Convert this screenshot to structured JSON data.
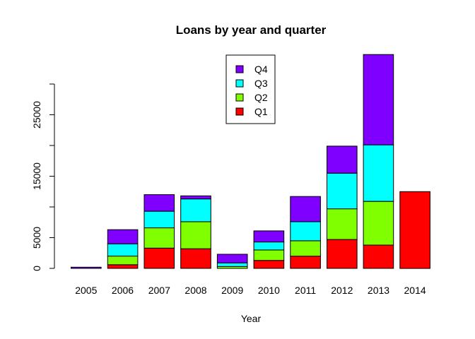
{
  "chart_data": {
    "type": "bar",
    "stacked": true,
    "title": "Loans by year and quarter",
    "xlabel": "Year",
    "ylabel": "",
    "categories": [
      "2005",
      "2006",
      "2007",
      "2008",
      "2009",
      "2010",
      "2011",
      "2012",
      "2013",
      "2014"
    ],
    "series": [
      {
        "name": "Q1",
        "color": "#FF0000",
        "values": [
          0,
          600,
          3300,
          3200,
          0,
          1300,
          2000,
          4700,
          3800,
          12500
        ]
      },
      {
        "name": "Q2",
        "color": "#80FF00",
        "values": [
          0,
          1400,
          3300,
          4400,
          300,
          1700,
          2500,
          5000,
          7100,
          0
        ]
      },
      {
        "name": "Q3",
        "color": "#00FFFF",
        "values": [
          0,
          2000,
          2700,
          3700,
          600,
          1300,
          3100,
          5800,
          9200,
          0
        ]
      },
      {
        "name": "Q4",
        "color": "#8000FF",
        "values": [
          200,
          2300,
          2700,
          500,
          1400,
          1800,
          4100,
          4400,
          14700,
          0
        ]
      }
    ],
    "ylim": [
      0,
      35000
    ],
    "yticks": [
      0,
      5000,
      15000,
      25000
    ],
    "ytick_labels": [
      "0",
      "5000",
      "15000",
      "25000"
    ],
    "legend": {
      "placement": "top-center",
      "order": [
        "Q4",
        "Q3",
        "Q2",
        "Q1"
      ]
    },
    "grid": false
  }
}
